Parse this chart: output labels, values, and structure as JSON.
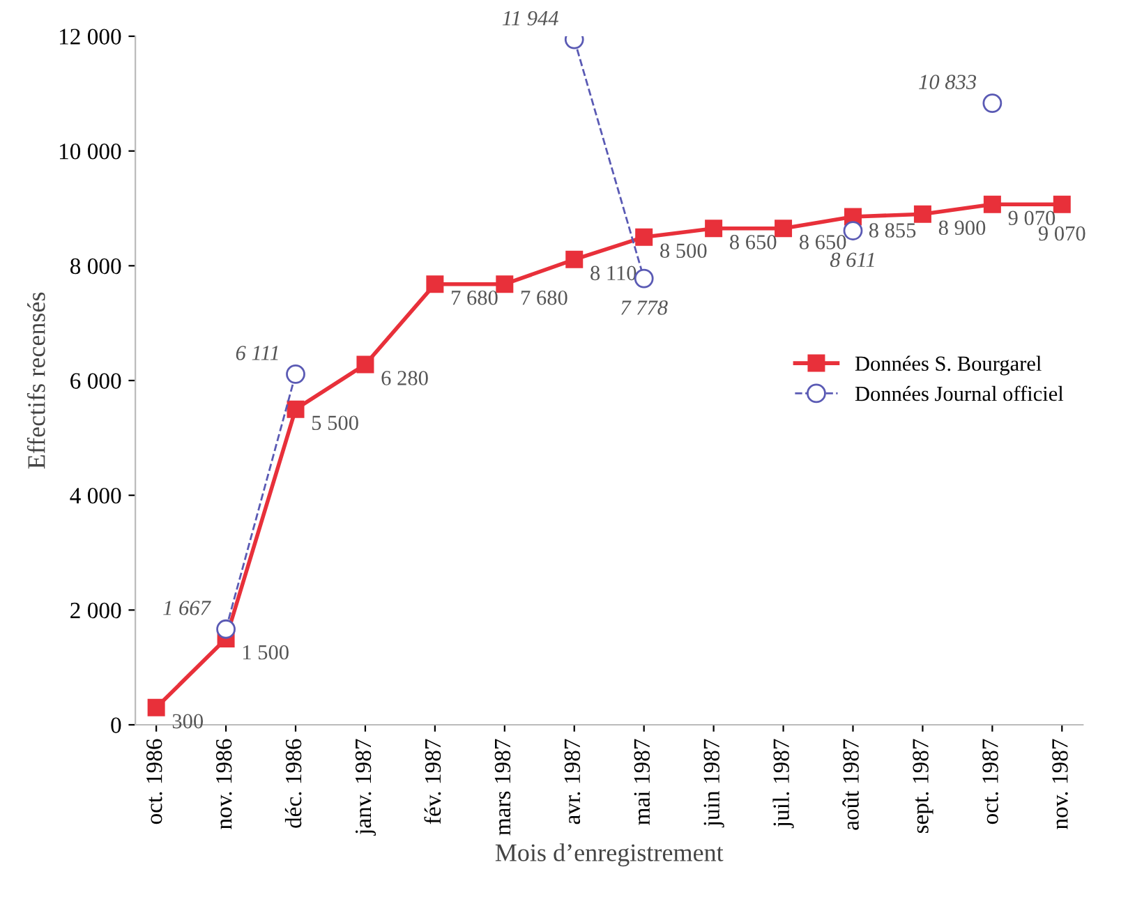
{
  "chart_data": {
    "type": "line",
    "xlabel": "Mois d’enregistrement",
    "ylabel": "Effectifs recensés",
    "categories": [
      "oct. 1986",
      "nov. 1986",
      "déc. 1986",
      "janv. 1987",
      "fév. 1987",
      "mars 1987",
      "avr. 1987",
      "mai 1987",
      "juin 1987",
      "juil. 1987",
      "août 1987",
      "sept. 1987",
      "oct. 1987",
      "nov. 1987"
    ],
    "series": [
      {
        "name": "Données S. Bourgarel",
        "color": "#e8303a",
        "marker": "square",
        "line_style": "solid",
        "values": [
          300,
          1500,
          5500,
          6280,
          7680,
          7680,
          8110,
          8500,
          8650,
          8650,
          8855,
          8900,
          9070,
          9070
        ],
        "value_labels": [
          "300",
          "1 500",
          "5 500",
          "6 280",
          "7 680",
          "7 680",
          "8 110",
          "8 500",
          "8 650",
          "8 650",
          "8 855",
          "8 900",
          "9 070",
          "9 070"
        ]
      },
      {
        "name": "Données Journal officiel",
        "color": "#5a5ab4",
        "marker": "circle",
        "line_style": "dashed",
        "values": [
          null,
          1667,
          6111,
          null,
          null,
          null,
          11944,
          7778,
          null,
          null,
          8611,
          null,
          10833,
          null
        ],
        "value_labels": [
          null,
          "1 667",
          "6 111",
          null,
          null,
          null,
          "11 944",
          "7 778",
          null,
          null,
          "8 611",
          null,
          "10 833",
          null
        ]
      }
    ],
    "ylim": [
      0,
      12000
    ],
    "yticks": [
      0,
      {
        "value": 2000,
        "label": "2 000"
      },
      {
        "value": 4000,
        "label": "4 000"
      },
      {
        "value": 6000,
        "label": "6 000"
      },
      {
        "value": 8000,
        "label": "8 000"
      },
      {
        "value": 10000,
        "label": "10 000"
      },
      {
        "value": 12000,
        "label": "12 000"
      }
    ],
    "grid": false,
    "legend": "right"
  }
}
